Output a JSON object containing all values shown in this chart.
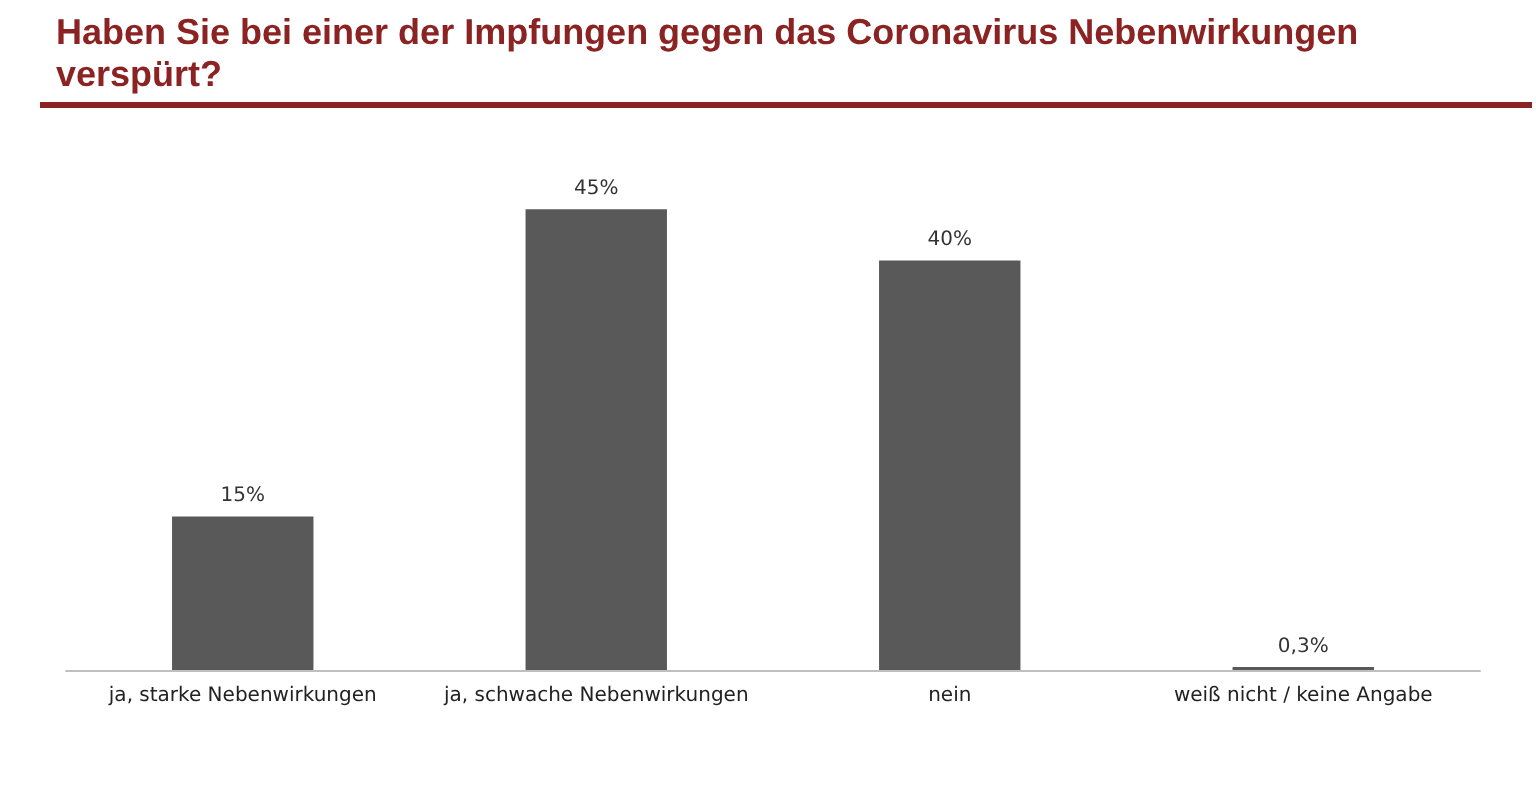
{
  "chart_data": {
    "type": "bar",
    "title": "Haben Sie bei einer der Impfungen gegen das Coronavirus Nebenwirkungen verspürt?",
    "categories": [
      "ja, starke Nebenwirkungen",
      "ja, schwache Nebenwirkungen",
      "nein",
      "weiß nicht / keine Angabe"
    ],
    "values": [
      15,
      45,
      40,
      0.3
    ],
    "value_labels": [
      "15%",
      "45%",
      "40%",
      "0,3%"
    ],
    "color": "#595959"
  }
}
